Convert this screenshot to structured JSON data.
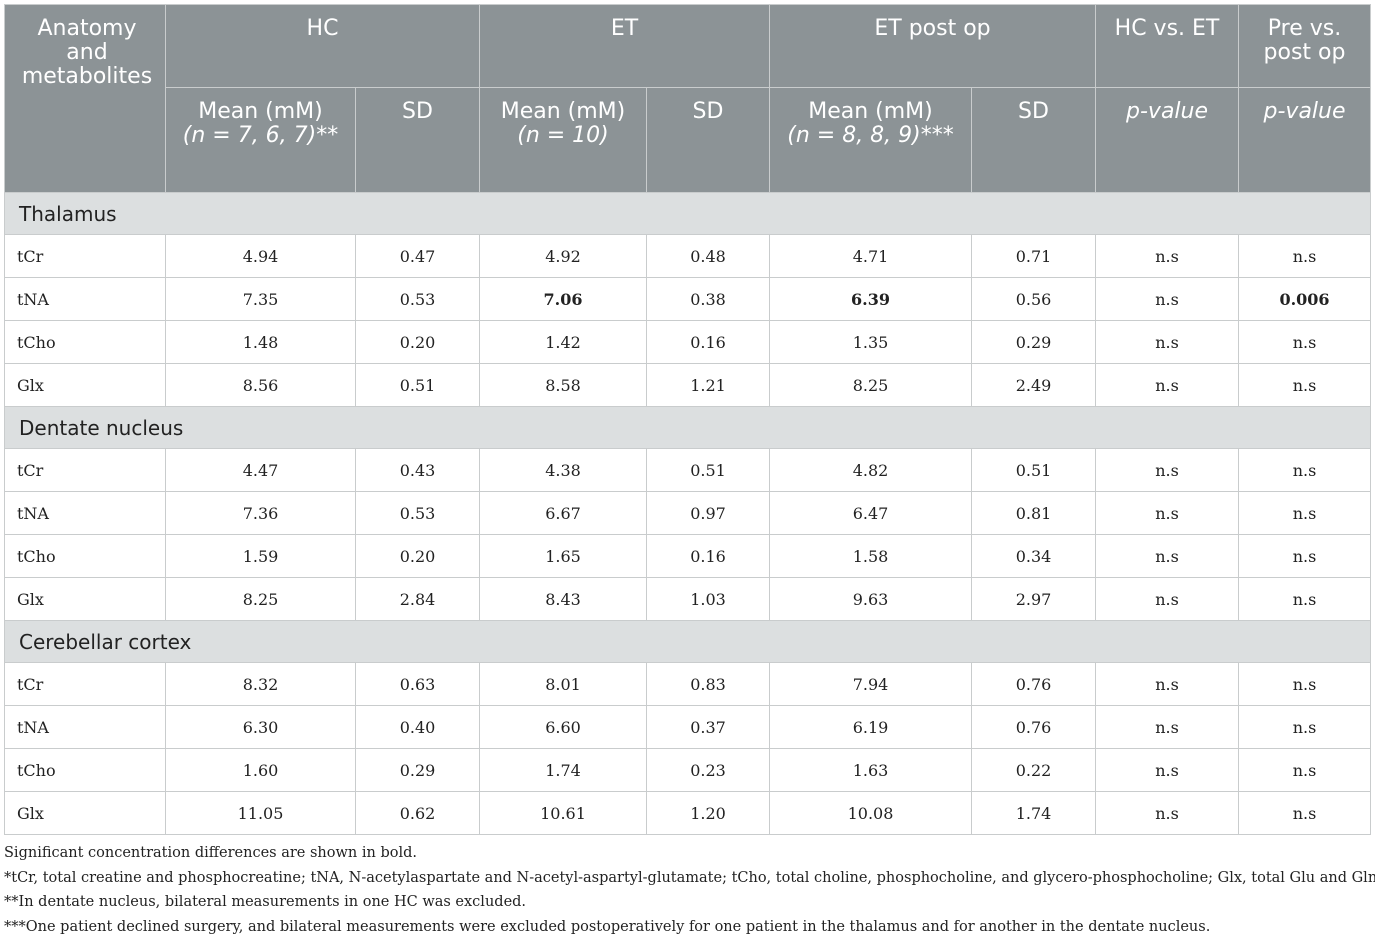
{
  "header": {
    "anatomy": "Anatomy and metabolites",
    "hc": "HC",
    "et": "ET",
    "et_post": "ET post op",
    "hc_vs_et": "HC vs. ET",
    "pre_vs_post": "Pre vs. post op",
    "hc_mean_a": "Mean (mM)",
    "hc_mean_b": "(n = 7, 6, 7)**",
    "et_mean_a": "Mean (mM)",
    "et_mean_b": "(n = 10)",
    "post_mean_a": "Mean (mM)",
    "post_mean_b": "(n = 8, 8, 9)***",
    "sd": "SD",
    "p_value": "p-value"
  },
  "sections": [
    {
      "name": "Thalamus",
      "rows": [
        {
          "m": "tCr",
          "hc_mean": "4.94",
          "hc_sd": "0.47",
          "et_mean": "4.92",
          "et_sd": "0.48",
          "post_mean": "4.71",
          "post_sd": "0.71",
          "p1": "n.s",
          "p2": "n.s"
        },
        {
          "m": "tNA",
          "hc_mean": "7.35",
          "hc_sd": "0.53",
          "et_mean": "7.06",
          "et_sd": "0.38",
          "post_mean": "6.39",
          "post_sd": "0.56",
          "p1": "n.s",
          "p2": "0.006"
        },
        {
          "m": "tCho",
          "hc_mean": "1.48",
          "hc_sd": "0.20",
          "et_mean": "1.42",
          "et_sd": "0.16",
          "post_mean": "1.35",
          "post_sd": "0.29",
          "p1": "n.s",
          "p2": "n.s"
        },
        {
          "m": "Glx",
          "hc_mean": "8.56",
          "hc_sd": "0.51",
          "et_mean": "8.58",
          "et_sd": "1.21",
          "post_mean": "8.25",
          "post_sd": "2.49",
          "p1": "n.s",
          "p2": "n.s"
        }
      ]
    },
    {
      "name": "Dentate nucleus",
      "rows": [
        {
          "m": "tCr",
          "hc_mean": "4.47",
          "hc_sd": "0.43",
          "et_mean": "4.38",
          "et_sd": "0.51",
          "post_mean": "4.82",
          "post_sd": "0.51",
          "p1": "n.s",
          "p2": "n.s"
        },
        {
          "m": "tNA",
          "hc_mean": "7.36",
          "hc_sd": "0.53",
          "et_mean": "6.67",
          "et_sd": "0.97",
          "post_mean": "6.47",
          "post_sd": "0.81",
          "p1": "n.s",
          "p2": "n.s"
        },
        {
          "m": "tCho",
          "hc_mean": "1.59",
          "hc_sd": "0.20",
          "et_mean": "1.65",
          "et_sd": "0.16",
          "post_mean": "1.58",
          "post_sd": "0.34",
          "p1": "n.s",
          "p2": "n.s"
        },
        {
          "m": "Glx",
          "hc_mean": "8.25",
          "hc_sd": "2.84",
          "et_mean": "8.43",
          "et_sd": "1.03",
          "post_mean": "9.63",
          "post_sd": "2.97",
          "p1": "n.s",
          "p2": "n.s"
        }
      ]
    },
    {
      "name": "Cerebellar cortex",
      "rows": [
        {
          "m": "tCr",
          "hc_mean": "8.32",
          "hc_sd": "0.63",
          "et_mean": "8.01",
          "et_sd": "0.83",
          "post_mean": "7.94",
          "post_sd": "0.76",
          "p1": "n.s",
          "p2": "n.s"
        },
        {
          "m": "tNA",
          "hc_mean": "6.30",
          "hc_sd": "0.40",
          "et_mean": "6.60",
          "et_sd": "0.37",
          "post_mean": "6.19",
          "post_sd": "0.76",
          "p1": "n.s",
          "p2": "n.s"
        },
        {
          "m": "tCho",
          "hc_mean": "1.60",
          "hc_sd": "0.29",
          "et_mean": "1.74",
          "et_sd": "0.23",
          "post_mean": "1.63",
          "post_sd": "0.22",
          "p1": "n.s",
          "p2": "n.s"
        },
        {
          "m": "Glx",
          "hc_mean": "11.05",
          "hc_sd": "0.62",
          "et_mean": "10.61",
          "et_sd": "1.20",
          "post_mean": "10.08",
          "post_sd": "1.74",
          "p1": "n.s",
          "p2": "n.s"
        }
      ]
    }
  ],
  "footnotes": {
    "bold_note": "Significant concentration differences are shown in bold.",
    "note1": "*tCr, total creatine and phosphocreatine; tNA, N-acetylaspartate and N-acetyl-aspartyl-glutamate; tCho, total choline, phosphocholine, and glycero-phosphocholine; Glx, total Glu and Gln.",
    "note2": "**In dentate nucleus, bilateral measurements in one HC was excluded.",
    "note3": "***One patient declined surgery, and bilateral measurements were excluded postoperatively for one patient in the thalamus and for another in the dentate nucleus."
  }
}
